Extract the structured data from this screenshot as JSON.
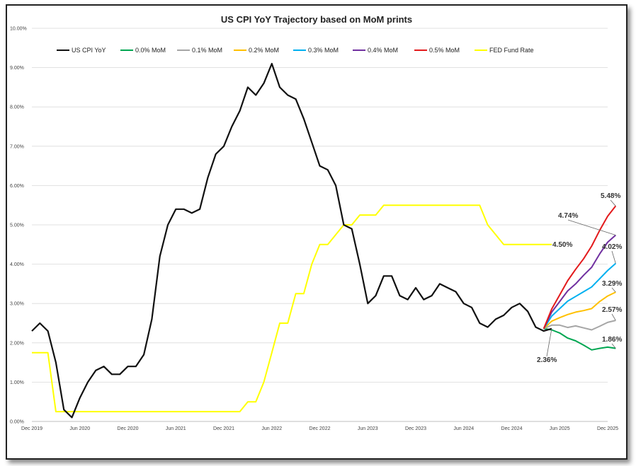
{
  "chart_data": {
    "type": "line",
    "title": "US CPI YoY Trajectory based on MoM prints",
    "xlabel": "",
    "ylabel": "",
    "ylim": [
      0,
      10
    ],
    "y_ticks": [
      "0.00%",
      "1.00%",
      "2.00%",
      "3.00%",
      "4.00%",
      "5.00%",
      "6.00%",
      "7.00%",
      "8.00%",
      "9.00%",
      "10.00%"
    ],
    "x_ticks": [
      "Dec 2019",
      "Jun 2020",
      "Dec 2020",
      "Jun 2021",
      "Dec 2021",
      "Jun 2022",
      "Dec 2022",
      "Jun 2023",
      "Dec 2023",
      "Jun 2024",
      "Dec 2024",
      "Jun 2025",
      "Dec 2025"
    ],
    "x_start": "Dec 2019",
    "x_end": "Dec 2025",
    "grid": "horizontal",
    "legend_position": "top",
    "series": [
      {
        "name": "US CPI YoY",
        "color": "#111111",
        "start": "Dec 2019",
        "values": [
          2.3,
          2.5,
          2.3,
          1.5,
          0.3,
          0.1,
          0.6,
          1.0,
          1.3,
          1.4,
          1.2,
          1.2,
          1.4,
          1.4,
          1.7,
          2.6,
          4.2,
          5.0,
          5.4,
          5.4,
          5.3,
          5.4,
          6.2,
          6.8,
          7.0,
          7.5,
          7.9,
          8.5,
          8.3,
          8.6,
          9.1,
          8.5,
          8.3,
          8.2,
          7.7,
          7.1,
          6.5,
          6.4,
          6.0,
          5.0,
          4.9,
          4.0,
          3.0,
          3.2,
          3.7,
          3.7,
          3.2,
          3.1,
          3.4,
          3.1,
          3.2,
          3.5,
          3.4,
          3.3,
          3.0,
          2.9,
          2.5,
          2.4,
          2.6,
          2.7,
          2.9,
          3.0,
          2.8,
          2.4,
          2.3,
          2.36
        ]
      },
      {
        "name": "0.0% MoM",
        "color": "#00a651",
        "start": "Apr 2025",
        "values": [
          2.36,
          2.33,
          2.25,
          2.12,
          2.05,
          1.94,
          1.82,
          1.86,
          1.89,
          1.86
        ]
      },
      {
        "name": "0.1% MoM",
        "color": "#a6a6a6",
        "start": "Apr 2025",
        "values": [
          2.36,
          2.45,
          2.45,
          2.39,
          2.43,
          2.38,
          2.33,
          2.42,
          2.52,
          2.57
        ]
      },
      {
        "name": "0.2% MoM",
        "color": "#ffc000",
        "start": "Apr 2025",
        "values": [
          2.36,
          2.55,
          2.64,
          2.72,
          2.78,
          2.82,
          2.87,
          3.05,
          3.19,
          3.29
        ]
      },
      {
        "name": "0.3% MoM",
        "color": "#00b0f0",
        "start": "Apr 2025",
        "values": [
          2.36,
          2.68,
          2.87,
          3.06,
          3.18,
          3.3,
          3.42,
          3.63,
          3.84,
          4.02
        ]
      },
      {
        "name": "0.4% MoM",
        "color": "#7030a0",
        "start": "Apr 2025",
        "values": [
          2.36,
          2.78,
          3.05,
          3.32,
          3.5,
          3.72,
          3.92,
          4.26,
          4.56,
          4.74
        ]
      },
      {
        "name": "0.5% MoM",
        "color": "#e31a1c",
        "start": "Apr 2025",
        "values": [
          2.36,
          2.86,
          3.22,
          3.58,
          3.87,
          4.14,
          4.46,
          4.86,
          5.22,
          5.48
        ]
      },
      {
        "name": "FED Fund Rate",
        "color": "#ffff00",
        "start": "Dec 2019",
        "values": [
          1.75,
          1.75,
          1.75,
          0.25,
          0.25,
          0.25,
          0.25,
          0.25,
          0.25,
          0.25,
          0.25,
          0.25,
          0.25,
          0.25,
          0.25,
          0.25,
          0.25,
          0.25,
          0.25,
          0.25,
          0.25,
          0.25,
          0.25,
          0.25,
          0.25,
          0.25,
          0.25,
          0.5,
          0.5,
          1.0,
          1.75,
          2.5,
          2.5,
          3.25,
          3.25,
          4.0,
          4.5,
          4.5,
          4.75,
          5.0,
          5.0,
          5.25,
          5.25,
          5.25,
          5.5,
          5.5,
          5.5,
          5.5,
          5.5,
          5.5,
          5.5,
          5.5,
          5.5,
          5.5,
          5.5,
          5.5,
          5.5,
          5.0,
          4.75,
          4.5,
          4.5,
          4.5,
          4.5,
          4.5,
          4.5,
          4.5
        ]
      }
    ],
    "annotations": [
      {
        "label": "5.48%",
        "series": "0.5% MoM"
      },
      {
        "label": "4.74%",
        "series": "0.4% MoM"
      },
      {
        "label": "4.02%",
        "series": "0.3% MoM"
      },
      {
        "label": "3.29%",
        "series": "0.2% MoM"
      },
      {
        "label": "2.57%",
        "series": "0.1% MoM"
      },
      {
        "label": "1.86%",
        "series": "0.0% MoM"
      },
      {
        "label": "2.36%",
        "series": "US CPI YoY"
      },
      {
        "label": "4.50%",
        "series": "FED Fund Rate"
      }
    ]
  }
}
